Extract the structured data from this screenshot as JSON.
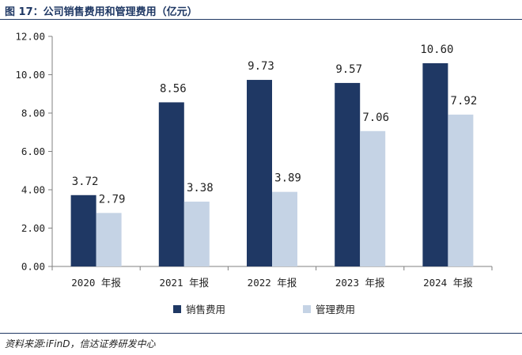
{
  "figure": {
    "title": "图 17：公司销售费用和管理费用（亿元）",
    "source": "资料来源:iFinD，信达证券研发中心"
  },
  "colors": {
    "series_1": "#1f3864",
    "series_2": "#c5d3e5",
    "title": "#1f3864",
    "axis": "#808080"
  },
  "chart_data": {
    "type": "bar",
    "categories": [
      "2020 年报",
      "2021 年报",
      "2022 年报",
      "2023 年报",
      "2024 年报"
    ],
    "series": [
      {
        "name": "销售费用",
        "values": [
          3.72,
          8.56,
          9.73,
          9.57,
          10.6
        ],
        "labels": [
          "3.72",
          "8.56",
          "9.73",
          "9.57",
          "10.60"
        ]
      },
      {
        "name": "管理费用",
        "values": [
          2.79,
          3.38,
          3.89,
          7.06,
          7.92
        ],
        "labels": [
          "2.79",
          "3.38",
          "3.89",
          "7.06",
          "7.92"
        ]
      }
    ],
    "ylim": [
      0,
      12
    ],
    "yticks": [
      "0.00",
      "2.00",
      "4.00",
      "6.00",
      "8.00",
      "10.00",
      "12.00"
    ],
    "grid": false,
    "legend_position": "bottom"
  }
}
